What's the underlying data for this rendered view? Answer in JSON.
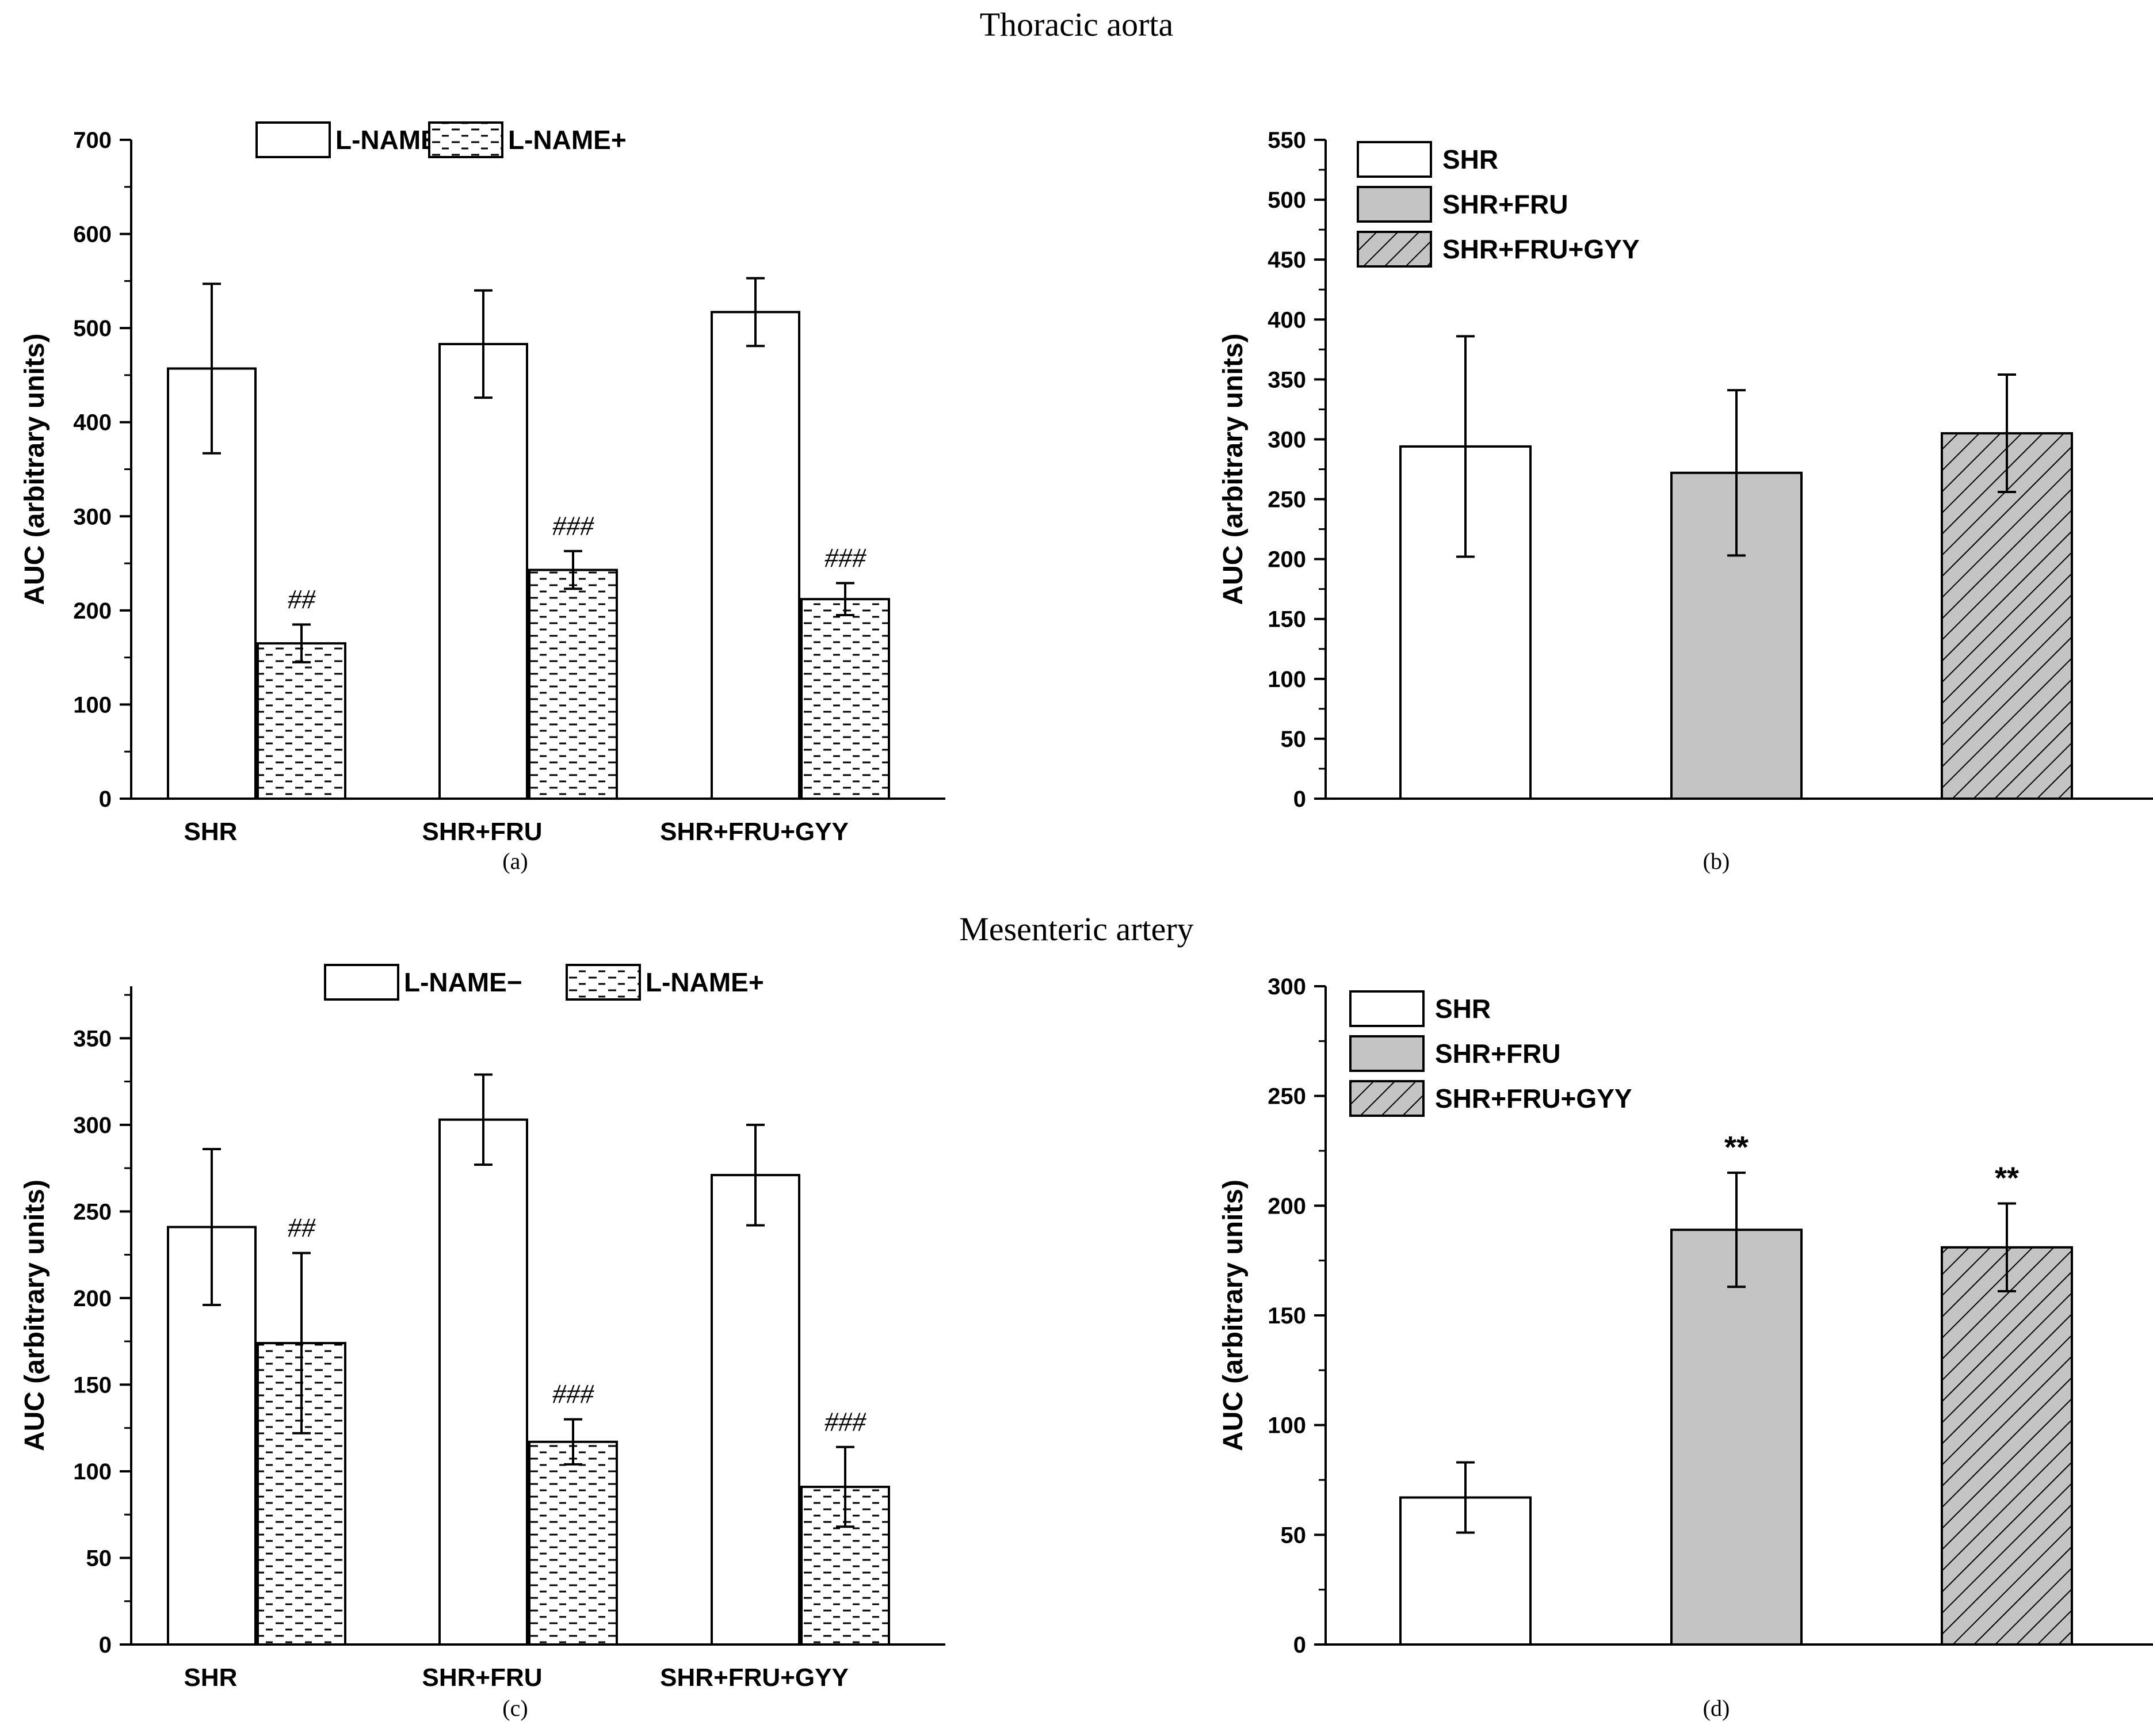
{
  "figure": {
    "section_top_title": "Thoracic aorta",
    "section_bottom_title": "Mesenteric artery"
  },
  "colors": {
    "axis": "#000000",
    "bar_white": "#ffffff",
    "bar_gray": "#c4c4c4",
    "bar_hatch_bg": "#c4c4c4",
    "background": "#ffffff"
  },
  "chart_data": [
    {
      "id": "a",
      "type": "bar",
      "panel_label": "(a)",
      "ylabel": "AUC (arbitrary units)",
      "ylim": [
        0,
        700
      ],
      "yticks": [
        0,
        100,
        200,
        300,
        400,
        500,
        600,
        700
      ],
      "categories": [
        "SHR",
        "SHR+FRU",
        "SHR+FRU+GYY"
      ],
      "legend": [
        "L-NAME−",
        "L-NAME+"
      ],
      "legend_position": "top-center",
      "series": [
        {
          "name": "L-NAME−",
          "pattern": "white",
          "values": [
            457,
            483,
            517
          ],
          "errors": [
            90,
            57,
            36
          ],
          "annotations": [
            "",
            "",
            ""
          ]
        },
        {
          "name": "L-NAME+",
          "pattern": "dashes",
          "values": [
            165,
            243,
            212
          ],
          "errors": [
            20,
            20,
            17
          ],
          "annotations": [
            "##",
            "###",
            "###"
          ]
        }
      ]
    },
    {
      "id": "b",
      "type": "bar",
      "panel_label": "(b)",
      "ylabel": "AUC (arbitrary units)",
      "ylim": [
        0,
        550
      ],
      "yticks": [
        0,
        50,
        100,
        150,
        200,
        250,
        300,
        350,
        400,
        450,
        500,
        550
      ],
      "categories": [
        "SHR",
        "SHR+FRU",
        "SHR+FRU+GYY"
      ],
      "legend": [
        "SHR",
        "SHR+FRU",
        "SHR+FRU+GYY"
      ],
      "legend_position": "top-left",
      "series": [
        {
          "name": "AUC",
          "patterns": [
            "white",
            "gray",
            "hatch"
          ],
          "values": [
            294,
            272,
            305
          ],
          "errors": [
            92,
            69,
            49
          ],
          "annotations": [
            "",
            "",
            ""
          ]
        }
      ]
    },
    {
      "id": "c",
      "type": "bar",
      "panel_label": "(c)",
      "ylabel": "AUC (arbitrary units)",
      "ylim": [
        0,
        380
      ],
      "yticks": [
        0,
        50,
        100,
        150,
        200,
        250,
        300,
        350
      ],
      "categories": [
        "SHR",
        "SHR+FRU",
        "SHR+FRU+GYY"
      ],
      "legend": [
        "L-NAME−",
        "L-NAME+"
      ],
      "legend_position": "top-center",
      "series": [
        {
          "name": "L-NAME−",
          "pattern": "white",
          "values": [
            241,
            303,
            271
          ],
          "errors": [
            45,
            26,
            29
          ],
          "annotations": [
            "",
            "",
            ""
          ]
        },
        {
          "name": "L-NAME+",
          "pattern": "dashes",
          "values": [
            174,
            117,
            91
          ],
          "errors": [
            52,
            13,
            23
          ],
          "annotations": [
            "##",
            "###",
            "###"
          ]
        }
      ]
    },
    {
      "id": "d",
      "type": "bar",
      "panel_label": "(d)",
      "ylabel": "AUC (arbitrary units)",
      "ylim": [
        0,
        300
      ],
      "yticks": [
        0,
        50,
        100,
        150,
        200,
        250,
        300
      ],
      "categories": [
        "SHR",
        "SHR+FRU",
        "SHR+FRU+GYY"
      ],
      "legend": [
        "SHR",
        "SHR+FRU",
        "SHR+FRU+GYY"
      ],
      "legend_position": "top-left",
      "series": [
        {
          "name": "AUC",
          "patterns": [
            "white",
            "gray",
            "hatch"
          ],
          "values": [
            67,
            189,
            181
          ],
          "errors": [
            16,
            26,
            20
          ],
          "annotations": [
            "",
            "**",
            "**"
          ]
        }
      ]
    }
  ]
}
